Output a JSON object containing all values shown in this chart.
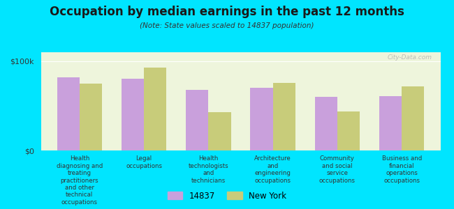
{
  "title": "Occupation by median earnings in the past 12 months",
  "subtitle": "(Note: State values scaled to 14837 population)",
  "categories": [
    "Health\ndiagnosing and\ntreating\npractitioners\nand other\ntechnical\noccupations",
    "Legal\noccupations",
    "Health\ntechnologists\nand\ntechnicians",
    "Architecture\nand\nengineering\noccupations",
    "Community\nand social\nservice\noccupations",
    "Business and\nfinancial\noperations\noccupations"
  ],
  "values_14837": [
    82000,
    80000,
    68000,
    70000,
    60000,
    61000
  ],
  "values_ny": [
    75000,
    93000,
    43000,
    76000,
    44000,
    72000
  ],
  "color_14837": "#c9a0dc",
  "color_ny": "#c8cc7a",
  "background_color": "#00e5ff",
  "plot_bg_color": "#eef5dc",
  "ylabel_ticks": [
    "$0",
    "$100k"
  ],
  "ylim": [
    0,
    110000
  ],
  "yticks": [
    0,
    100000
  ],
  "legend_14837": "14837",
  "legend_ny": "New York",
  "watermark": "City-Data.com"
}
